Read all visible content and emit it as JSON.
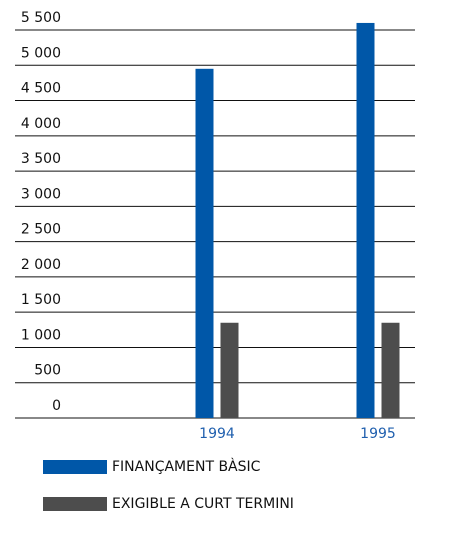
{
  "chart_data": {
    "type": "bar",
    "categories": [
      "1994",
      "1995"
    ],
    "series": [
      {
        "name": "FINANÇAMENT BÀSIC",
        "color": "#0057a8",
        "values": [
          4950,
          5600
        ]
      },
      {
        "name": "EXIGIBLE A CURT TERMINI",
        "color": "#4d4d4d",
        "values": [
          1350,
          1350
        ]
      }
    ],
    "ylim": [
      0,
      5500
    ],
    "yticks": [
      0,
      500,
      {
        "value": 1000,
        "label": "1 000"
      },
      {
        "value": 1500,
        "label": "1 500"
      },
      {
        "value": 2000,
        "label": "2 000"
      },
      {
        "value": 2500,
        "label": "2 500"
      },
      {
        "value": 3000,
        "label": "3 000"
      },
      {
        "value": 3500,
        "label": "3 500"
      },
      {
        "value": 4000,
        "label": "4 000"
      },
      {
        "value": 4500,
        "label": "4 500"
      },
      {
        "value": 5000,
        "label": "5 000"
      },
      {
        "value": 5500,
        "label": "5 500"
      }
    ],
    "grid": true,
    "legend": "bottom"
  }
}
